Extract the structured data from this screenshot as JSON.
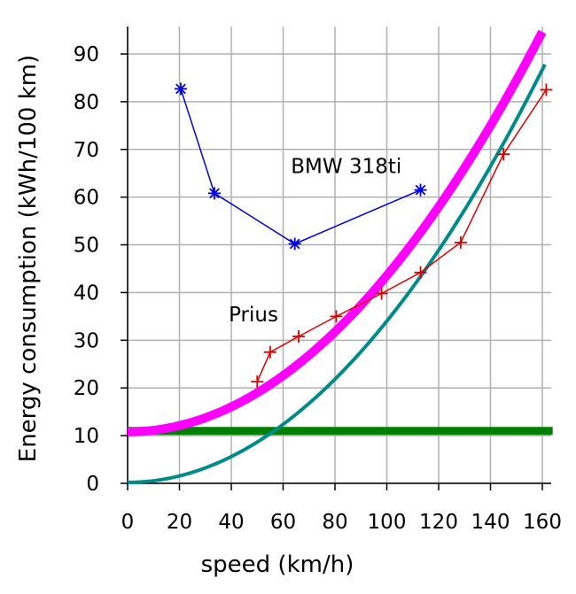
{
  "chart_data": {
    "type": "line",
    "xlabel": "speed (km/h)",
    "ylabel": "Energy consumption (kWh/100 km)",
    "xlim": [
      0,
      160
    ],
    "ylim": [
      0,
      95
    ],
    "xticks": [
      0,
      20,
      40,
      60,
      80,
      100,
      120,
      140,
      160
    ],
    "yticks": [
      0,
      10,
      20,
      30,
      40,
      50,
      60,
      70,
      80,
      90
    ],
    "grid": true,
    "annotations": [
      {
        "text": "BMW 318ti",
        "x": 63,
        "y": 65
      },
      {
        "text": "Prius",
        "x": 39,
        "y": 34
      }
    ],
    "series": [
      {
        "role": "bmw",
        "color": "#0000dd",
        "marker": "asterisk",
        "points": [
          [
            20.5,
            82.7
          ],
          [
            33.5,
            60.8
          ],
          [
            64.5,
            50.2
          ],
          [
            113,
            61.5
          ]
        ]
      },
      {
        "role": "prius",
        "color": "#dd0000",
        "marker": "plus",
        "points": [
          [
            50,
            21.3
          ],
          [
            55,
            27.5
          ],
          [
            66,
            30.8
          ],
          [
            80.5,
            35.0
          ],
          [
            98,
            39.8
          ],
          [
            113,
            44.2
          ],
          [
            128.5,
            50.5
          ],
          [
            145,
            69.0
          ],
          [
            161.5,
            82.5
          ]
        ]
      },
      {
        "role": "magenta-curve",
        "color": "#ff00ff",
        "formula": {
          "kind": "quadratic",
          "c0": 10.8,
          "c2": 0.003275
        },
        "x_range": [
          0,
          160
        ]
      },
      {
        "role": "teal-curve",
        "color": "#008b8b",
        "formula": {
          "kind": "quadratic",
          "c0": 0.2,
          "c2": 0.00338
        },
        "x_range": [
          0,
          161
        ]
      },
      {
        "role": "green-line",
        "color": "#008000",
        "formula": {
          "kind": "constant",
          "c0": 11.0
        },
        "x_range": [
          0,
          164
        ]
      }
    ]
  }
}
